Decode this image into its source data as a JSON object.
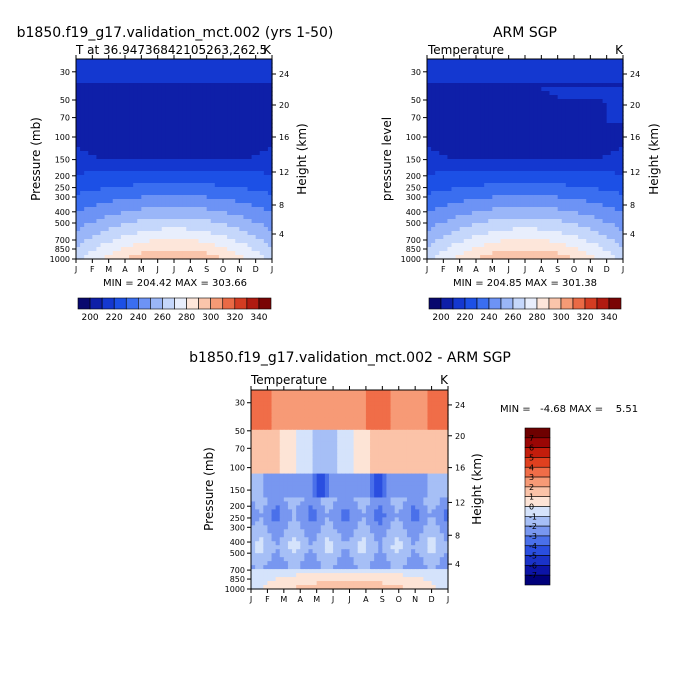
{
  "chart_data": [
    {
      "type": "heatmap",
      "title": "b1850.f19_g17.validation_mct.002 (yrs 1-50)",
      "subtitle_left": "T at 36.94736842105263,262.5",
      "subtitle_right": "K",
      "xlabel": "",
      "ylabel": "Pressure (mb)",
      "y2label": "Height (km)",
      "x_ticks": [
        "J",
        "F",
        "M",
        "A",
        "M",
        "J",
        "J",
        "A",
        "S",
        "O",
        "N",
        "D",
        "J"
      ],
      "pressure_ticks": [
        "30",
        "50",
        "70",
        "100",
        "150",
        "200",
        "250",
        "300",
        "400",
        "500",
        "700",
        "850",
        "1000"
      ],
      "height_ticks": [
        "24",
        "20",
        "16",
        "12",
        "8",
        "4"
      ],
      "stats": "MIN = 204.42  MAX = 303.66",
      "min": 204.42,
      "max": 303.66,
      "colorbar_labels": [
        "200",
        "220",
        "240",
        "260",
        "280",
        "300",
        "320",
        "340"
      ]
    },
    {
      "type": "heatmap",
      "title": "ARM SGP",
      "subtitle_left": "Temperature",
      "subtitle_right": "K",
      "xlabel": "",
      "ylabel": "pressure level",
      "y2label": "Height (km)",
      "x_ticks": [
        "J",
        "F",
        "M",
        "A",
        "M",
        "J",
        "J",
        "A",
        "S",
        "O",
        "N",
        "D",
        "J"
      ],
      "pressure_ticks": [
        "30",
        "50",
        "70",
        "100",
        "150",
        "200",
        "250",
        "300",
        "400",
        "500",
        "700",
        "850",
        "1000"
      ],
      "height_ticks": [
        "24",
        "20",
        "16",
        "12",
        "8",
        "4"
      ],
      "stats": "MIN = 204.85  MAX = 301.38",
      "min": 204.85,
      "max": 301.38,
      "colorbar_labels": [
        "200",
        "220",
        "240",
        "260",
        "280",
        "300",
        "320",
        "340"
      ]
    },
    {
      "type": "heatmap",
      "title": "b1850.f19_g17.validation_mct.002 - ARM SGP",
      "subtitle_left": "Temperature",
      "subtitle_right": "K",
      "xlabel": "",
      "ylabel": "Pressure (mb)",
      "y2label": "Height (km)",
      "x_ticks": [
        "J",
        "F",
        "M",
        "A",
        "M",
        "J",
        "J",
        "A",
        "S",
        "O",
        "N",
        "D",
        "J"
      ],
      "pressure_ticks": [
        "30",
        "50",
        "70",
        "100",
        "150",
        "200",
        "250",
        "300",
        "400",
        "500",
        "700",
        "850",
        "1000"
      ],
      "height_ticks": [
        "24",
        "20",
        "16",
        "12",
        "8",
        "4"
      ],
      "stats": "MIN =   -4.68 MAX =    5.51",
      "min": -4.68,
      "max": 5.51,
      "colorbar_labels": [
        "7",
        "6",
        "5",
        "4",
        "3",
        "2",
        "1",
        "0",
        "-1",
        "-2",
        "-3",
        "-4",
        "-5",
        "-6",
        "-7"
      ]
    }
  ],
  "colors": {
    "temp_scale": [
      "#08086e",
      "#0e1fa8",
      "#1438d0",
      "#1c50e6",
      "#3a6ef0",
      "#6d93f5",
      "#9ab6f8",
      "#c5d7fb",
      "#e8eefc",
      "#fde6da",
      "#fac5ab",
      "#f59a75",
      "#ea6a45",
      "#d43c22",
      "#b01a10",
      "#7a0505"
    ],
    "diff_scale": [
      "#00007a",
      "#0c14a6",
      "#1a32c8",
      "#2a4ee0",
      "#4a70ea",
      "#7897f0",
      "#a6bff6",
      "#d5e3fb",
      "#fde4d6",
      "#fbc3a8",
      "#f79a76",
      "#f06d48",
      "#e0401f",
      "#c31d0c",
      "#9a0605",
      "#6e0000"
    ]
  }
}
